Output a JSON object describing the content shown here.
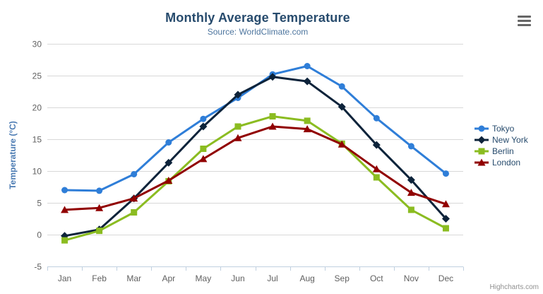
{
  "header": {
    "title": "Monthly Average Temperature",
    "subtitle": "Source: WorldClimate.com",
    "context_menu_icon": "hamburger-icon"
  },
  "credits": {
    "label": "Highcharts.com"
  },
  "colors": {
    "title": "#274b6d",
    "subtitle": "#4d759e",
    "axis_labels": "#606060",
    "y_axis_title": "#4a7ab2",
    "axis_line": "#c0d0e0",
    "gridline": "#d8d8d8",
    "legend_text": "#274b6d"
  },
  "chart_data": {
    "type": "line",
    "title": "Monthly Average Temperature",
    "subtitle": "Source: WorldClimate.com",
    "categories": [
      "Jan",
      "Feb",
      "Mar",
      "Apr",
      "May",
      "Jun",
      "Jul",
      "Aug",
      "Sep",
      "Oct",
      "Nov",
      "Dec"
    ],
    "series": [
      {
        "name": "Tokyo",
        "color": "#2f7ed8",
        "marker": "circle",
        "values": [
          7.0,
          6.9,
          9.5,
          14.5,
          18.2,
          21.5,
          25.2,
          26.5,
          23.3,
          18.3,
          13.9,
          9.6
        ]
      },
      {
        "name": "New York",
        "color": "#0d233a",
        "marker": "diamond",
        "values": [
          -0.2,
          0.8,
          5.7,
          11.3,
          17.0,
          22.0,
          24.8,
          24.1,
          20.1,
          14.1,
          8.6,
          2.5
        ]
      },
      {
        "name": "Berlin",
        "color": "#8bbc21",
        "marker": "square",
        "values": [
          -0.9,
          0.6,
          3.5,
          8.4,
          13.5,
          17.0,
          18.6,
          17.9,
          14.3,
          9.0,
          3.9,
          1.0
        ]
      },
      {
        "name": "London",
        "color": "#910000",
        "marker": "triangle",
        "values": [
          3.9,
          4.2,
          5.7,
          8.5,
          11.9,
          15.2,
          17.0,
          16.6,
          14.2,
          10.3,
          6.6,
          4.8
        ]
      }
    ],
    "xlabel": "",
    "ylabel": "Temperature (°C)",
    "ylim": [
      -5,
      30
    ],
    "ytick_step": 5,
    "grid": true,
    "legend_position": "right"
  }
}
